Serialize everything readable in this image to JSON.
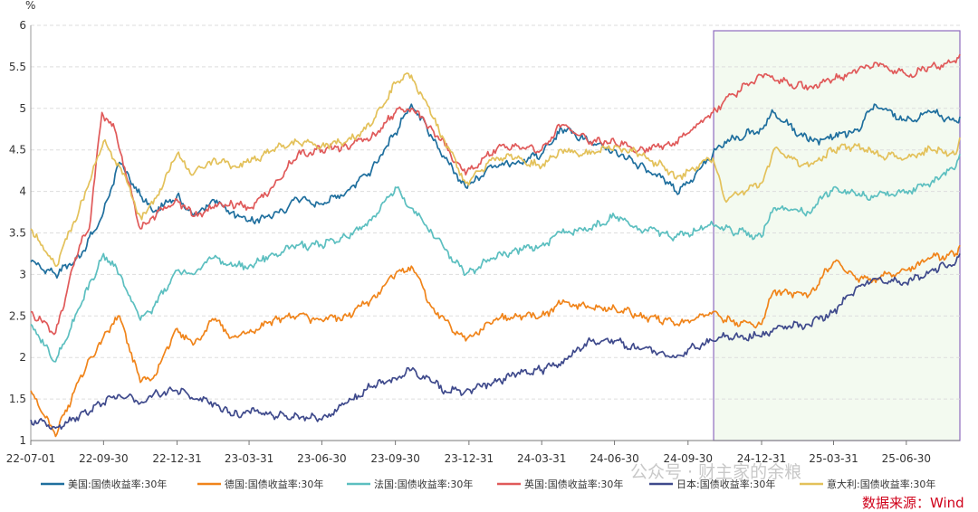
{
  "chart_data": {
    "type": "line",
    "unit": "%",
    "ylim": [
      1,
      6
    ],
    "yticks": [
      "1",
      "1.5",
      "2",
      "2.5",
      "3",
      "3.5",
      "4",
      "4.5",
      "5",
      "5.5",
      "6"
    ],
    "xlim": [
      "2022-07-01",
      "2025-09-05"
    ],
    "xticks": [
      {
        "date": "2022-07-01",
        "label": "22-07-01"
      },
      {
        "date": "2022-09-30",
        "label": "22-09-30"
      },
      {
        "date": "2022-12-31",
        "label": "22-12-31"
      },
      {
        "date": "2023-03-31",
        "label": "23-03-31"
      },
      {
        "date": "2023-06-30",
        "label": "23-06-30"
      },
      {
        "date": "2023-09-30",
        "label": "23-09-30"
      },
      {
        "date": "2023-12-31",
        "label": "23-12-31"
      },
      {
        "date": "2024-03-31",
        "label": "24-03-31"
      },
      {
        "date": "2024-06-30",
        "label": "24-06-30"
      },
      {
        "date": "2024-09-30",
        "label": "24-09-30"
      },
      {
        "date": "2024-12-31",
        "label": "24-12-31"
      },
      {
        "date": "2025-03-31",
        "label": "25-03-31"
      },
      {
        "date": "2025-06-30",
        "label": "25-06-30"
      }
    ],
    "grid": true,
    "legend": "bottom",
    "highlight_region": {
      "x_start": "2024-11-01",
      "x_end": "2025-09-05",
      "fill": "#f3faf0",
      "stroke": "#8e6bbf"
    },
    "series": [
      {
        "name": "美国:国债收益率:30年",
        "color": "#1f6f9e",
        "x": [
          "2022-07-01",
          "2022-08-01",
          "2022-08-31",
          "2022-09-30",
          "2022-10-20",
          "2022-11-15",
          "2022-12-01",
          "2022-12-31",
          "2023-01-20",
          "2023-02-15",
          "2023-03-10",
          "2023-03-31",
          "2023-04-30",
          "2023-05-31",
          "2023-06-30",
          "2023-07-31",
          "2023-08-31",
          "2023-09-30",
          "2023-10-20",
          "2023-11-15",
          "2023-12-01",
          "2023-12-27",
          "2024-01-31",
          "2024-02-29",
          "2024-03-31",
          "2024-04-25",
          "2024-05-31",
          "2024-06-30",
          "2024-07-31",
          "2024-08-31",
          "2024-09-15",
          "2024-09-30",
          "2024-10-31",
          "2024-11-15",
          "2024-12-31",
          "2025-01-15",
          "2025-02-28",
          "2025-03-31",
          "2025-04-30",
          "2025-05-21",
          "2025-06-30",
          "2025-07-31",
          "2025-08-31",
          "2025-09-05"
        ],
        "values": [
          3.15,
          3.0,
          3.2,
          3.75,
          4.35,
          3.95,
          3.75,
          3.95,
          3.7,
          3.9,
          3.75,
          3.65,
          3.7,
          3.9,
          3.85,
          4.0,
          4.25,
          4.7,
          5.05,
          4.65,
          4.4,
          4.05,
          4.3,
          4.35,
          4.45,
          4.75,
          4.6,
          4.5,
          4.3,
          4.15,
          4.0,
          4.1,
          4.45,
          4.6,
          4.75,
          4.95,
          4.6,
          4.65,
          4.75,
          5.05,
          4.85,
          4.95,
          4.85,
          4.9
        ]
      },
      {
        "name": "德国:国债收益率:30年",
        "color": "#f0841a",
        "x": [
          "2022-07-01",
          "2022-08-01",
          "2022-08-31",
          "2022-09-30",
          "2022-10-20",
          "2022-11-15",
          "2022-12-01",
          "2022-12-31",
          "2023-01-20",
          "2023-02-15",
          "2023-03-10",
          "2023-03-31",
          "2023-04-30",
          "2023-05-31",
          "2023-06-30",
          "2023-07-31",
          "2023-08-31",
          "2023-09-30",
          "2023-10-20",
          "2023-11-15",
          "2023-12-01",
          "2023-12-27",
          "2024-01-31",
          "2024-02-29",
          "2024-03-31",
          "2024-04-25",
          "2024-05-31",
          "2024-06-30",
          "2024-07-31",
          "2024-08-31",
          "2024-09-15",
          "2024-09-30",
          "2024-10-31",
          "2024-11-15",
          "2024-12-31",
          "2025-01-15",
          "2025-02-28",
          "2025-03-31",
          "2025-04-30",
          "2025-05-21",
          "2025-06-30",
          "2025-07-31",
          "2025-08-31",
          "2025-09-05"
        ],
        "values": [
          1.6,
          1.05,
          1.75,
          2.25,
          2.5,
          1.7,
          1.75,
          2.35,
          2.15,
          2.45,
          2.25,
          2.3,
          2.45,
          2.5,
          2.45,
          2.5,
          2.7,
          3.0,
          3.1,
          2.6,
          2.45,
          2.2,
          2.45,
          2.5,
          2.5,
          2.65,
          2.6,
          2.6,
          2.5,
          2.45,
          2.4,
          2.45,
          2.55,
          2.45,
          2.4,
          2.8,
          2.75,
          3.15,
          2.95,
          2.95,
          3.05,
          3.2,
          3.25,
          3.35
        ]
      },
      {
        "name": "法国:国债收益率:30年",
        "color": "#5cbfc0",
        "x": [
          "2022-07-01",
          "2022-08-01",
          "2022-08-31",
          "2022-09-30",
          "2022-10-20",
          "2022-11-15",
          "2022-12-01",
          "2022-12-31",
          "2023-01-20",
          "2023-02-15",
          "2023-03-10",
          "2023-03-31",
          "2023-04-30",
          "2023-05-31",
          "2023-06-30",
          "2023-07-31",
          "2023-08-31",
          "2023-09-30",
          "2023-10-20",
          "2023-11-15",
          "2023-12-01",
          "2023-12-27",
          "2024-01-31",
          "2024-02-29",
          "2024-03-31",
          "2024-04-25",
          "2024-05-31",
          "2024-06-30",
          "2024-07-31",
          "2024-08-31",
          "2024-09-15",
          "2024-09-30",
          "2024-10-31",
          "2024-11-15",
          "2024-12-31",
          "2025-01-15",
          "2025-02-28",
          "2025-03-31",
          "2025-04-30",
          "2025-05-21",
          "2025-06-30",
          "2025-07-31",
          "2025-08-31",
          "2025-09-05"
        ],
        "values": [
          2.4,
          1.95,
          2.6,
          3.25,
          3.0,
          2.45,
          2.6,
          3.05,
          3.0,
          3.2,
          3.1,
          3.1,
          3.25,
          3.35,
          3.35,
          3.45,
          3.65,
          4.05,
          3.8,
          3.5,
          3.3,
          3.0,
          3.2,
          3.3,
          3.35,
          3.5,
          3.55,
          3.7,
          3.55,
          3.5,
          3.45,
          3.5,
          3.6,
          3.55,
          3.45,
          3.8,
          3.75,
          4.05,
          3.95,
          3.95,
          4.0,
          4.1,
          4.3,
          4.45
        ]
      },
      {
        "name": "英国:国债收益率:30年",
        "color": "#e05a5a",
        "x": [
          "2022-07-01",
          "2022-08-01",
          "2022-08-31",
          "2022-09-12",
          "2022-09-28",
          "2022-10-14",
          "2022-11-15",
          "2022-12-01",
          "2022-12-31",
          "2023-01-20",
          "2023-02-15",
          "2023-03-10",
          "2023-03-31",
          "2023-04-30",
          "2023-05-31",
          "2023-06-30",
          "2023-07-31",
          "2023-08-31",
          "2023-09-30",
          "2023-10-20",
          "2023-11-15",
          "2023-12-01",
          "2023-12-27",
          "2024-01-31",
          "2024-02-29",
          "2024-03-31",
          "2024-04-25",
          "2024-05-31",
          "2024-06-30",
          "2024-07-31",
          "2024-08-31",
          "2024-09-15",
          "2024-09-30",
          "2024-10-31",
          "2024-11-15",
          "2024-12-31",
          "2025-01-15",
          "2025-02-28",
          "2025-03-31",
          "2025-04-30",
          "2025-05-21",
          "2025-06-30",
          "2025-07-31",
          "2025-08-31",
          "2025-09-05"
        ],
        "values": [
          2.55,
          2.3,
          3.35,
          3.55,
          4.95,
          4.75,
          3.55,
          3.7,
          3.9,
          3.7,
          3.8,
          3.85,
          3.8,
          4.05,
          4.45,
          4.5,
          4.55,
          4.65,
          4.95,
          5.0,
          4.75,
          4.55,
          4.2,
          4.5,
          4.55,
          4.5,
          4.8,
          4.6,
          4.6,
          4.5,
          4.55,
          4.6,
          4.7,
          4.95,
          5.1,
          5.4,
          5.35,
          5.25,
          5.35,
          5.45,
          5.55,
          5.4,
          5.5,
          5.55,
          5.65
        ]
      },
      {
        "name": "日本:国债收益率:30年",
        "color": "#3f4a8c",
        "x": [
          "2022-07-01",
          "2022-08-01",
          "2022-08-31",
          "2022-09-30",
          "2022-10-20",
          "2022-11-15",
          "2022-12-01",
          "2022-12-31",
          "2023-01-20",
          "2023-02-15",
          "2023-03-10",
          "2023-03-31",
          "2023-04-30",
          "2023-05-31",
          "2023-06-30",
          "2023-07-31",
          "2023-08-31",
          "2023-09-30",
          "2023-10-20",
          "2023-11-15",
          "2023-12-01",
          "2023-12-27",
          "2024-01-31",
          "2024-02-29",
          "2024-03-31",
          "2024-04-25",
          "2024-05-31",
          "2024-06-30",
          "2024-07-31",
          "2024-08-31",
          "2024-09-15",
          "2024-09-30",
          "2024-10-31",
          "2024-11-15",
          "2024-12-31",
          "2025-01-15",
          "2025-02-28",
          "2025-03-31",
          "2025-04-30",
          "2025-05-21",
          "2025-06-30",
          "2025-07-31",
          "2025-08-31",
          "2025-09-05"
        ],
        "values": [
          1.25,
          1.15,
          1.3,
          1.45,
          1.55,
          1.45,
          1.55,
          1.6,
          1.5,
          1.45,
          1.3,
          1.35,
          1.3,
          1.3,
          1.25,
          1.45,
          1.65,
          1.75,
          1.85,
          1.7,
          1.6,
          1.6,
          1.7,
          1.8,
          1.85,
          1.95,
          2.2,
          2.2,
          2.1,
          2.05,
          2.0,
          2.1,
          2.2,
          2.25,
          2.25,
          2.35,
          2.4,
          2.55,
          2.85,
          2.95,
          2.9,
          3.05,
          3.15,
          3.25
        ]
      },
      {
        "name": "意大利:国债收益率:30年",
        "color": "#e3c15a",
        "x": [
          "2022-07-01",
          "2022-08-01",
          "2022-08-31",
          "2022-09-30",
          "2022-10-20",
          "2022-11-15",
          "2022-12-01",
          "2022-12-31",
          "2023-01-20",
          "2023-02-15",
          "2023-03-10",
          "2023-03-31",
          "2023-04-30",
          "2023-05-31",
          "2023-06-30",
          "2023-07-31",
          "2023-08-31",
          "2023-09-30",
          "2023-10-20",
          "2023-11-15",
          "2023-12-01",
          "2023-12-27",
          "2024-01-31",
          "2024-02-29",
          "2024-03-31",
          "2024-04-25",
          "2024-05-31",
          "2024-06-30",
          "2024-07-31",
          "2024-08-31",
          "2024-09-15",
          "2024-09-30",
          "2024-10-31",
          "2024-11-15",
          "2024-12-31",
          "2025-01-15",
          "2025-02-28",
          "2025-03-31",
          "2025-04-30",
          "2025-05-21",
          "2025-06-30",
          "2025-07-31",
          "2025-08-31",
          "2025-09-05"
        ],
        "values": [
          3.55,
          3.1,
          3.8,
          4.6,
          4.3,
          3.7,
          3.85,
          4.45,
          4.2,
          4.4,
          4.3,
          4.35,
          4.5,
          4.6,
          4.55,
          4.6,
          4.8,
          5.3,
          5.4,
          4.9,
          4.6,
          4.1,
          4.4,
          4.4,
          4.3,
          4.5,
          4.45,
          4.55,
          4.45,
          4.3,
          4.15,
          4.25,
          4.4,
          3.9,
          4.1,
          4.5,
          4.3,
          4.5,
          4.55,
          4.45,
          4.4,
          4.5,
          4.45,
          4.65
        ]
      }
    ]
  },
  "source_label": "数据来源：Wind",
  "watermark": "公众号 · 财主家的余粮"
}
